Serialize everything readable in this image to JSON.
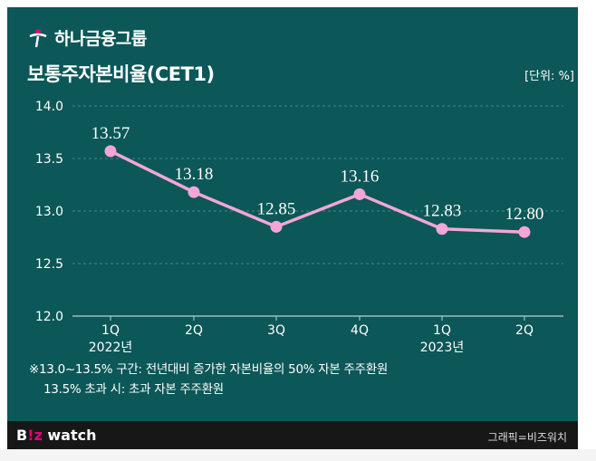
{
  "header": {
    "logo_text": "하나금융그룹",
    "title": "보통주자본비율(CET1)",
    "unit": "[단위: %]"
  },
  "colors": {
    "background": "#0c5758",
    "line": "#f4a6d6",
    "grid": "#3f8a84",
    "text": "#ffffff",
    "footer": "#171717",
    "brand_accent": "#e6007e"
  },
  "chart_data": {
    "type": "line",
    "title": "보통주자본비율(CET1)",
    "xlabel": "",
    "ylabel": "%",
    "categories": [
      "1Q",
      "2Q",
      "3Q",
      "4Q",
      "1Q",
      "2Q"
    ],
    "year_labels": [
      "2022년",
      "",
      "",
      "",
      "2023년",
      ""
    ],
    "values": [
      13.57,
      13.18,
      12.85,
      13.16,
      12.83,
      12.8
    ],
    "value_labels": [
      "13.57",
      "13.18",
      "12.85",
      "13.16",
      "12.83",
      "12.80"
    ],
    "yticks": [
      "14.0",
      "13.5",
      "13.0",
      "12.5",
      "12.0"
    ],
    "ylim": [
      12.0,
      14.0
    ],
    "grid": true
  },
  "notes": {
    "line1": "※13.0~13.5% 구간: 전년대비 증가한 자본비율의 50% 자본 주주환원",
    "line2": "13.5% 초과 시: 초과 자본 주주환원"
  },
  "footer": {
    "brand_part1": "B",
    "brand_part2": "!z",
    "brand_part3": " watch",
    "credit": "그래픽=비즈워치"
  }
}
